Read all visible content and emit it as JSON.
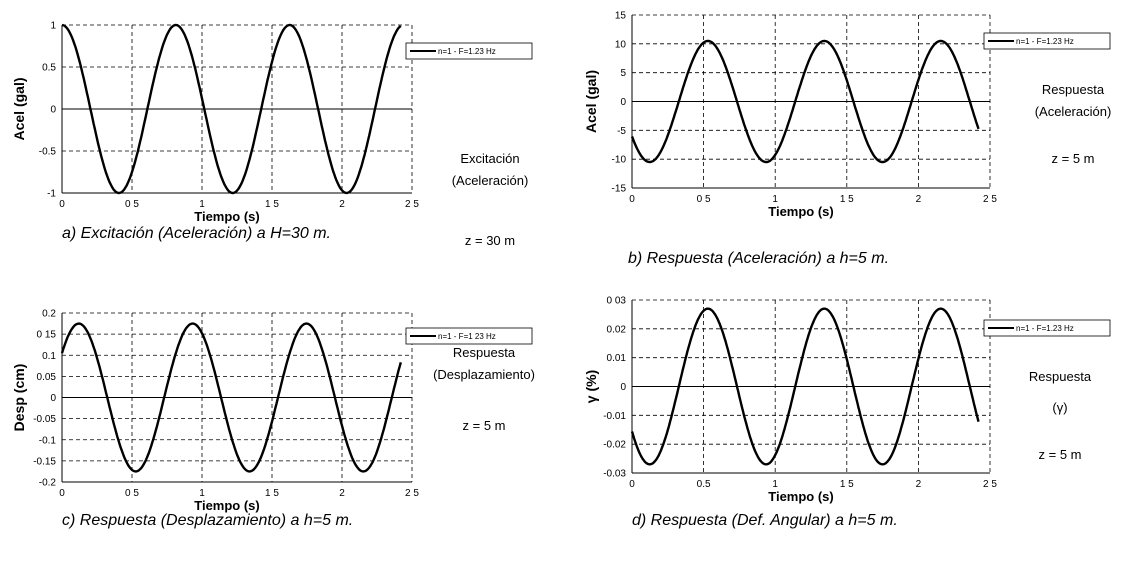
{
  "chart_data": [
    {
      "id": "a",
      "type": "line",
      "caption": "a) Excitación (Aceleración) a H=30 m.",
      "xlabel": "Tiempo (s)",
      "ylabel": "Acel (gal)",
      "xlim": [
        0,
        2.5
      ],
      "ylim": [
        -1,
        1
      ],
      "xticks": [
        "0",
        "0 5",
        "1",
        "1 5",
        "2",
        "2 5"
      ],
      "yticks": [
        "1",
        "0.5",
        "0",
        "-0.5",
        "-1"
      ],
      "ytick_values": [
        1,
        0.5,
        0,
        -0.5,
        -1
      ],
      "grid": true,
      "legend_placement": "top-right",
      "side_text": [
        "Excitación",
        "(Aceleración)",
        "z = 30 m"
      ],
      "series": [
        {
          "name": "n=1  -  F=1.23 Hz",
          "x_start": 0,
          "x_end": 2.42,
          "amplitude": 1.0,
          "frequency_hz": 1.23,
          "phase_peak_t": 0.0,
          "offset": 0
        }
      ]
    },
    {
      "id": "b",
      "type": "line",
      "caption": "b) Respuesta (Aceleración) a h=5 m.",
      "xlabel": "Tiempo (s)",
      "ylabel": "Acel (gal)",
      "xlim": [
        0,
        2.5
      ],
      "ylim": [
        -15,
        15
      ],
      "xticks": [
        "0",
        "0 5",
        "1",
        "1 5",
        "2",
        "2 5"
      ],
      "yticks": [
        "15",
        "10",
        "5",
        "0",
        "-5",
        "-10",
        "-15"
      ],
      "ytick_values": [
        15,
        10,
        5,
        0,
        -5,
        -10,
        -15
      ],
      "grid": true,
      "legend_placement": "top-right",
      "side_text": [
        "Respuesta",
        "(Aceleración)",
        "z = 5 m"
      ],
      "series": [
        {
          "name": "n=1  -  F=1.23 Hz",
          "x_start": 0,
          "x_end": 2.42,
          "amplitude": 10.5,
          "frequency_hz": 1.23,
          "phase_peak_t": 0.53,
          "offset": 0
        }
      ]
    },
    {
      "id": "c",
      "type": "line",
      "caption": "c) Respuesta (Desplazamiento) a h=5 m.",
      "xlabel": "Tiempo (s)",
      "ylabel": "Desp (cm)",
      "xlim": [
        0,
        2.5
      ],
      "ylim": [
        -0.2,
        0.2
      ],
      "xticks": [
        "0",
        "0 5",
        "1",
        "1 5",
        "2",
        "2 5"
      ],
      "yticks": [
        "0.2",
        "0 15",
        "0.1",
        "0.05",
        "0",
        "-0.05",
        "-0.1",
        "-0.15",
        "-0.2"
      ],
      "ytick_values": [
        0.2,
        0.15,
        0.1,
        0.05,
        0,
        -0.05,
        -0.1,
        -0.15,
        -0.2
      ],
      "grid": true,
      "legend_placement": "top-right",
      "side_text": [
        "Respuesta",
        "(Desplazamiento)",
        "z = 5 m"
      ],
      "series": [
        {
          "name": "n=1  -  F=1 23 Hz",
          "x_start": 0,
          "x_end": 2.42,
          "amplitude": 0.175,
          "frequency_hz": 1.23,
          "phase_peak_t": 0.12,
          "offset": 0
        }
      ]
    },
    {
      "id": "d",
      "type": "line",
      "caption": "d)  Respuesta (Def. Angular) a h=5 m.",
      "xlabel": "Tiempo (s)",
      "ylabel": "γ (%)",
      "xlim": [
        0,
        2.5
      ],
      "ylim": [
        -0.03,
        0.03
      ],
      "xticks": [
        "0",
        "0.5",
        "1",
        "1 5",
        "2",
        "2 5"
      ],
      "yticks": [
        "0 03",
        "0.02",
        "0.01",
        "0",
        "-0.01",
        "-0.02",
        "-0.03"
      ],
      "ytick_values": [
        0.03,
        0.02,
        0.01,
        0,
        -0.01,
        -0.02,
        -0.03
      ],
      "grid": true,
      "legend_placement": "top-right",
      "side_text": [
        "Respuesta",
        "(γ)",
        "z = 5 m"
      ],
      "series": [
        {
          "name": "n=1  -  F=1.23 Hz",
          "x_start": 0,
          "x_end": 2.42,
          "amplitude": 0.027,
          "frequency_hz": 1.23,
          "phase_peak_t": 0.53,
          "offset": 0
        }
      ]
    }
  ]
}
